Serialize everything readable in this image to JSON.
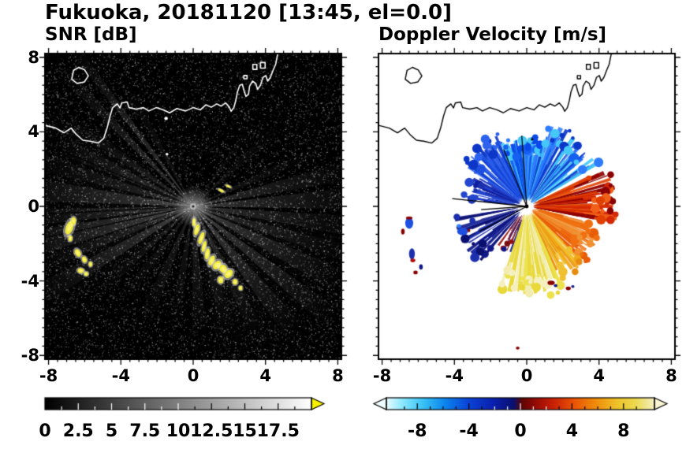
{
  "title": "Fukuoka, 20181120 [13:45, el=0.0]",
  "panels": {
    "snr": {
      "subtitle": "SNR [dB]",
      "x_tick_labels": [
        "-8",
        "-4",
        "0",
        "4",
        "8"
      ],
      "y_tick_labels": [
        "8",
        "4",
        "0",
        "-4",
        "-8"
      ],
      "colorbar_labels": [
        "0",
        "2.5",
        "5",
        "7.5",
        "10",
        "12.5",
        "15",
        "17.5"
      ]
    },
    "doppler": {
      "subtitle": "Doppler Velocity [m/s]",
      "x_tick_labels": [
        "-8",
        "-4",
        "0",
        "4",
        "8"
      ],
      "colorbar_labels": [
        "-8",
        "-4",
        "0",
        "4",
        "8"
      ]
    }
  },
  "chart_data": [
    {
      "type": "heatmap",
      "title": "SNR [dB]",
      "xlim": [
        -8.2,
        8.2
      ],
      "ylim": [
        -8.2,
        8.2
      ],
      "x_ticks": [
        -8,
        -4,
        0,
        4,
        8
      ],
      "y_ticks": [
        8,
        4,
        0,
        -4,
        -8
      ],
      "grid": false,
      "legend": "none",
      "colorbar": {
        "position": "bottom",
        "ticks": [
          0,
          2.5,
          5,
          7.5,
          10,
          12.5,
          15,
          17.5
        ],
        "range": [
          0,
          20
        ],
        "colormap": "black-to-white grayscale with yellow over-range arrow"
      },
      "description": "Radar SNR field centered on instrument at (0,0): dark speckle-noise background, bright radial beams toward E, SE, S, SW, W and a thin bright ray to NW; strong yellow clutter arcs SW of site near (-6.5,-1)..(-5.9,-3.6) and an arc from (0,-0.9) curving to (2.6,-4.4); two small yellow dashes near (1.6,0.9) and (2.0,1.1); white coastline of the bay with an island near (-6.3,7.0) and harbor piers near x=2.3..4.6, y=5.1..7.7."
    },
    {
      "type": "heatmap",
      "title": "Doppler Velocity [m/s]",
      "xlim": [
        -8.2,
        8.2
      ],
      "ylim": [
        -8.2,
        8.2
      ],
      "x_ticks": [
        -8,
        -4,
        0,
        4,
        8
      ],
      "y_ticks": [
        8,
        4,
        0,
        -4,
        -8
      ],
      "grid": false,
      "legend": "none",
      "colorbar": {
        "position": "bottom",
        "ticks": [
          -8,
          -4,
          0,
          4,
          8
        ],
        "range": [
          -10.4,
          10.4
        ],
        "colormap": "diverging: pale-cyan/cyan/blue/navy (negative) to maroon/red/orange/yellow/pale-yellow (positive)"
      },
      "description": "Fan of valid Doppler velocities around the site on white background: bright blue (toward) sector N to NW with cyan fringe at far range, blue arm to NE; orange/red (away) sector E with dark-red specks; pale-yellow sector S-SSE; short navy beams SW; thin black shadow rays inside the fan; detached blue/maroon echoes SW near (-6.5,-1)..(-5.9,-3.6) and near (-3.5,-1.3), small maroon/navy specks near (1.4,-4.1) and (2.3,-4.4); black coastline overlay."
    }
  ]
}
